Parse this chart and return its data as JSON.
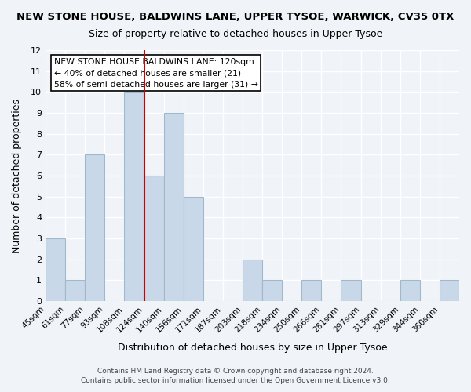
{
  "title1": "NEW STONE HOUSE, BALDWINS LANE, UPPER TYSOE, WARWICK, CV35 0TX",
  "title2": "Size of property relative to detached houses in Upper Tysoe",
  "xlabel": "Distribution of detached houses by size in Upper Tysoe",
  "ylabel": "Number of detached properties",
  "bin_labels": [
    "45sqm",
    "61sqm",
    "77sqm",
    "93sqm",
    "108sqm",
    "124sqm",
    "140sqm",
    "156sqm",
    "171sqm",
    "187sqm",
    "203sqm",
    "218sqm",
    "234sqm",
    "250sqm",
    "266sqm",
    "281sqm",
    "297sqm",
    "313sqm",
    "329sqm",
    "344sqm",
    "360sqm"
  ],
  "bar_heights": [
    3,
    1,
    7,
    0,
    10,
    6,
    9,
    5,
    0,
    0,
    2,
    1,
    0,
    1,
    0,
    1,
    0,
    0,
    1,
    0,
    1
  ],
  "bar_color": "#c8d8e8",
  "bar_edge_color": "#a0b8cc",
  "vline_x": 5.0,
  "vline_color": "#cc0000",
  "ylim": [
    0,
    12
  ],
  "yticks": [
    0,
    1,
    2,
    3,
    4,
    5,
    6,
    7,
    8,
    9,
    10,
    11,
    12
  ],
  "legend_title": "NEW STONE HOUSE BALDWINS LANE: 120sqm",
  "legend_line1": "← 40% of detached houses are smaller (21)",
  "legend_line2": "58% of semi-detached houses are larger (31) →",
  "legend_box_color": "#ffffff",
  "legend_box_edge": "#000000",
  "footer1": "Contains HM Land Registry data © Crown copyright and database right 2024.",
  "footer2": "Contains public sector information licensed under the Open Government Licence v3.0.",
  "background_color": "#f0f4f8",
  "grid_color": "#ffffff"
}
